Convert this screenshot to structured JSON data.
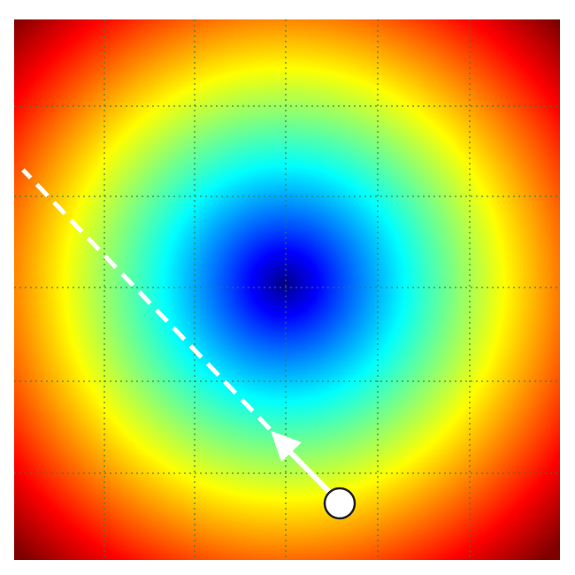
{
  "diagram": {
    "type": "gradient-descent-landscape",
    "colormap": "jet",
    "background": "#ffffff",
    "grid": {
      "visible": true,
      "style": "dotted",
      "divisions": 6,
      "color": "#3a7a3a"
    },
    "landscape": {
      "shape": "bowl",
      "minimum": "center",
      "low_color": "#000066",
      "high_color": "#800000"
    },
    "point": {
      "fill": "#ffffff",
      "stroke": "#222222"
    },
    "step_arrow": {
      "color": "#ffffff",
      "style": "solid"
    },
    "direction_line": {
      "color": "#ffffff",
      "style": "dashed"
    }
  }
}
